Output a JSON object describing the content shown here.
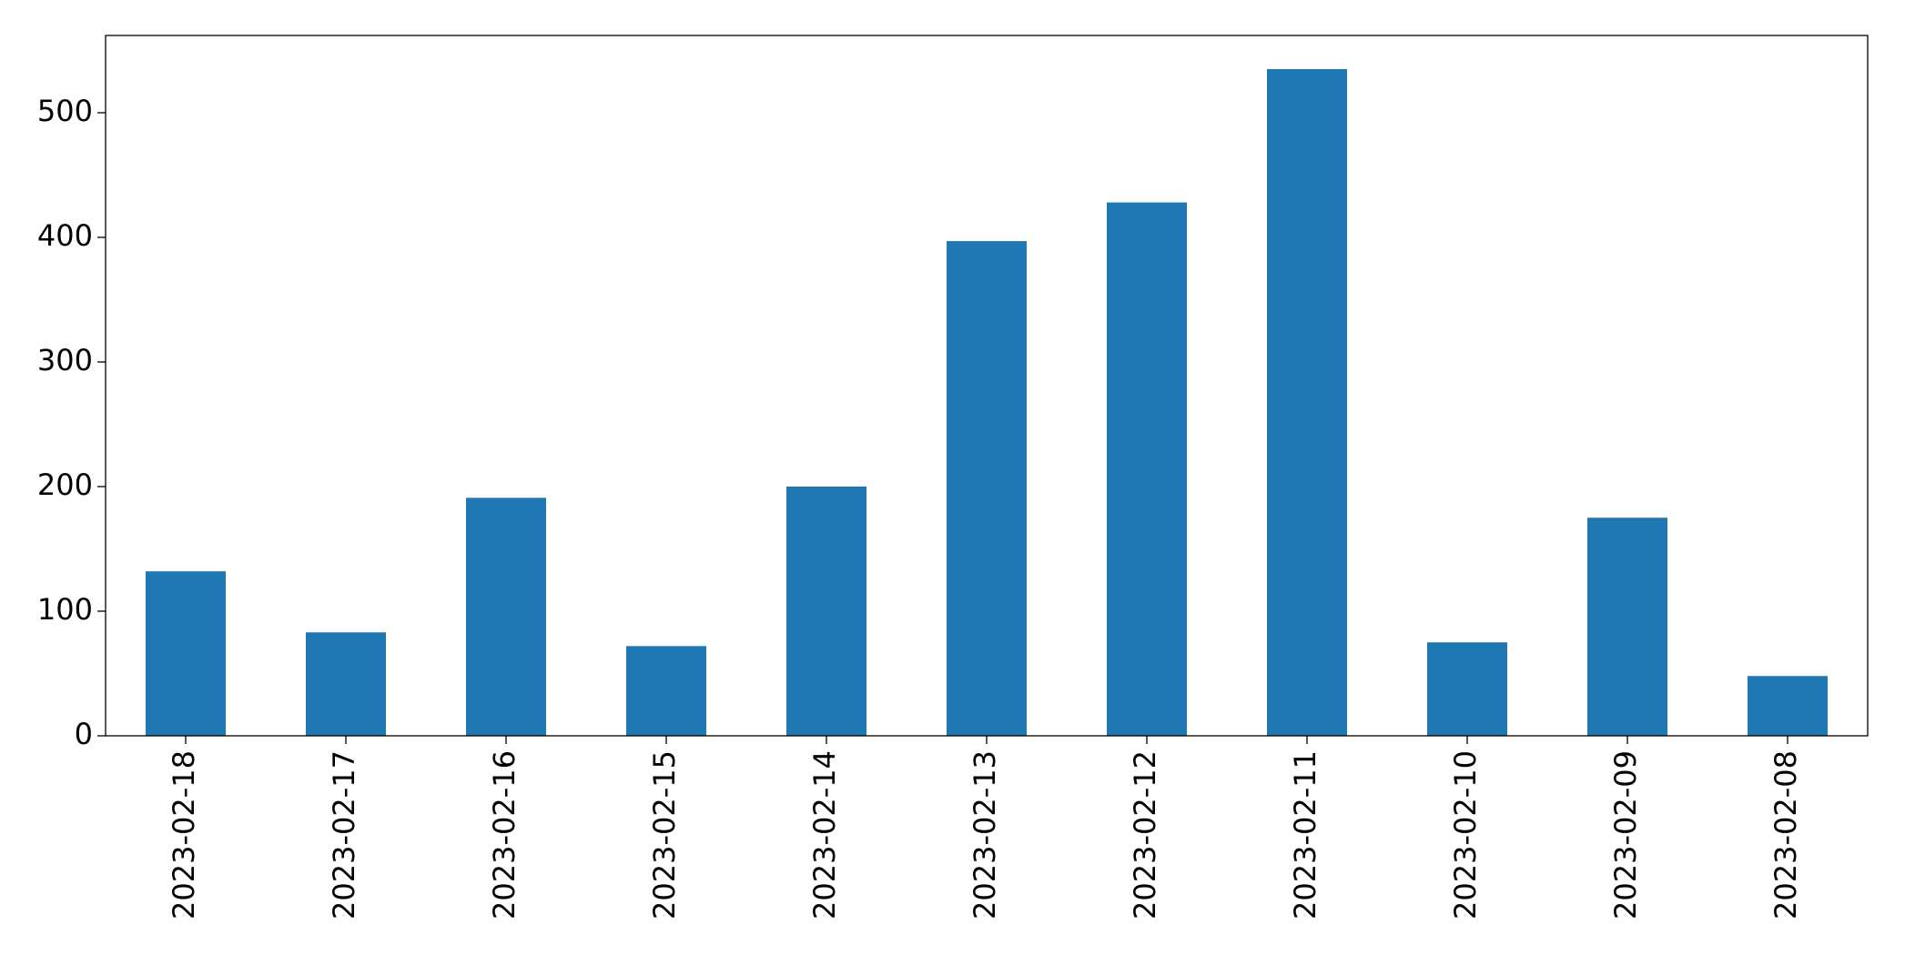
{
  "chart_data": {
    "type": "bar",
    "categories": [
      "2023-02-18",
      "2023-02-17",
      "2023-02-16",
      "2023-02-15",
      "2023-02-14",
      "2023-02-13",
      "2023-02-12",
      "2023-02-11",
      "2023-02-10",
      "2023-02-09",
      "2023-02-08"
    ],
    "values": [
      132,
      83,
      191,
      72,
      200,
      397,
      428,
      535,
      75,
      175,
      48
    ],
    "color": "#1f77b4",
    "ylim": [
      0,
      562
    ],
    "yticks": [
      0,
      100,
      200,
      300,
      400,
      500
    ],
    "grid": false
  }
}
